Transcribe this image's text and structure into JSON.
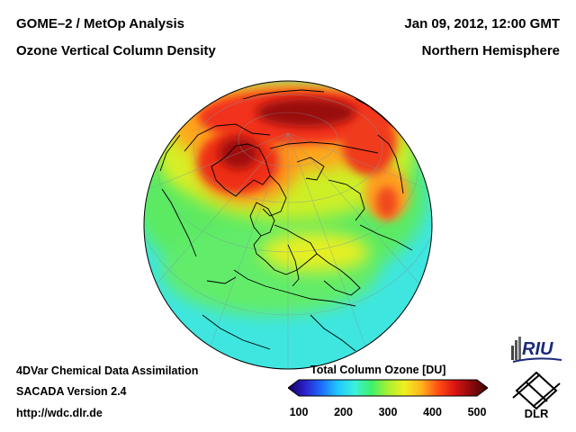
{
  "header": {
    "title_left_1": "GOME–2 / MetOp Analysis",
    "title_left_2": "Ozone Vertical Column Density",
    "title_right_1": "Jan 09, 2012, 12:00 GMT",
    "title_right_2": "Northern Hemisphere"
  },
  "footer": {
    "line1": "4DVar Chemical Data Assimilation",
    "line2": "SACADA Version 2.4",
    "line3": "http://wdc.dlr.de"
  },
  "colorbar": {
    "title": "Total Column Ozone [DU]",
    "ticks": [
      "100",
      "200",
      "300",
      "400",
      "500"
    ],
    "range": [
      100,
      500
    ],
    "colors": [
      "#14005a",
      "#2a20c8",
      "#1e6cff",
      "#20c8ff",
      "#3cf0dc",
      "#3cf06c",
      "#a8f032",
      "#f0f020",
      "#ffb41e",
      "#ff5014",
      "#dc1414",
      "#8c0a0a",
      "#3c0505"
    ]
  },
  "logos": {
    "riu": "RIU",
    "dlr": "DLR"
  },
  "map": {
    "projection": "orthographic",
    "field_colors": {
      "background": "#3ee6df",
      "mid": "#5cea63",
      "yellow": "#d8ef25",
      "orange": "#ffa51c",
      "red": "#f2321a",
      "darkred": "#9a0d0d"
    }
  }
}
